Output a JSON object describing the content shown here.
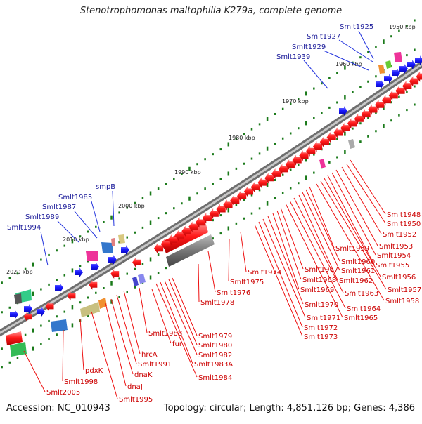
{
  "title": "Stenotrophomonas maltophilia K279a, complete genome",
  "footer": {
    "accession": "Accession: NC_010943",
    "summary": "Topology: circular; Length: 4,851,126 bp; Genes: 4,386"
  },
  "scale_labels": [
    "1950 kbp",
    "1960 kbp",
    "1970 kbp",
    "1980 kbp",
    "1990 kbp",
    "2000 kbp",
    "2010 kbp",
    "2020 kbp"
  ],
  "gene_labels_outer": [
    "Smlt1925",
    "Smlt1927",
    "Smlt1929",
    "Smlt1939",
    "smpB",
    "Smlt1985",
    "Smlt1987",
    "Smlt1989",
    "Smlt1994"
  ],
  "gene_labels_inner": [
    "Smlt1948",
    "Smlt1950",
    "Smlt1952",
    "Smlt1953",
    "Smlt1954",
    "Smlt1955",
    "Smlt1956",
    "Smlt1957",
    "Smlt1958",
    "Smlt1959",
    "Smlt1960",
    "Smlt1961",
    "Smlt1962",
    "Smlt1963",
    "Smlt1964",
    "Smlt1965",
    "Smlt1967",
    "Smlt1968",
    "Smlt1969",
    "Smlt1970",
    "Smlt1971",
    "Smlt1972",
    "Smlt1973",
    "Smlt1974",
    "Smlt1975",
    "Smlt1976",
    "Smlt1978",
    "Smlt1979",
    "Smlt1980",
    "Smlt1982",
    "Smlt1983A",
    "Smlt1984",
    "Smlt1988",
    "fur",
    "hrcA",
    "Smlt1991",
    "dnaK",
    "dnaJ",
    "pdxK",
    "Smlt1995",
    "Smlt1998",
    "Smlt2005"
  ],
  "colors": {
    "forward_gene": "#1a1aff",
    "reverse_gene": "#ff1a1a",
    "outer_label": "#1a1a99",
    "inner_label": "#cc0000",
    "leader_outer": "#2233dd",
    "leader_inner": "#ee1111",
    "backbone": "#888888",
    "tick": "#1a7a1a"
  }
}
